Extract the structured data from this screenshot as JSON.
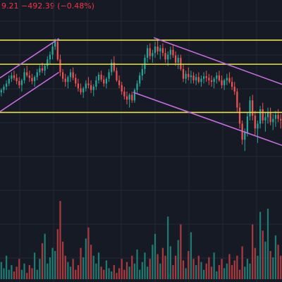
{
  "header": {
    "price_change": "9.21 −492.39 (−0.48%)"
  },
  "colors": {
    "background": "#161a25",
    "grid": "#232836",
    "up": "#26a69a",
    "down": "#ef5350",
    "volume_up": "#1f7a72",
    "volume_down": "#a8393c",
    "horizontal_level": "#e8e34a",
    "channel": "#c76be0",
    "header_text": "#f23645"
  },
  "chart_data": {
    "type": "candlestick",
    "x_count": 110,
    "y_range": [
      70,
      300
    ],
    "horizontal_levels": [
      160,
      220,
      250
    ],
    "channels": [
      {
        "name": "",
        "from": [
          0,
          203
        ],
        "to": [
          23,
          252
        ]
      },
      {
        "name": "",
        "from": [
          0,
          161
        ],
        "to": [
          23,
          210
        ]
      },
      {
        "name": "",
        "from": [
          60,
          253
        ],
        "to": [
          110,
          195
        ]
      },
      {
        "name": "",
        "from": [
          52,
          185
        ],
        "to": [
          110,
          119
        ]
      }
    ],
    "candles": [
      [
        185,
        190,
        180,
        188
      ],
      [
        188,
        195,
        184,
        192
      ],
      [
        192,
        200,
        188,
        196
      ],
      [
        196,
        206,
        193,
        202
      ],
      [
        202,
        210,
        198,
        206
      ],
      [
        206,
        212,
        200,
        203
      ],
      [
        203,
        208,
        195,
        199
      ],
      [
        199,
        204,
        190,
        194
      ],
      [
        194,
        202,
        186,
        200
      ],
      [
        200,
        215,
        196,
        210
      ],
      [
        210,
        218,
        204,
        206
      ],
      [
        206,
        212,
        198,
        203
      ],
      [
        203,
        208,
        195,
        199
      ],
      [
        199,
        206,
        192,
        204
      ],
      [
        204,
        214,
        200,
        210
      ],
      [
        210,
        219,
        206,
        215
      ],
      [
        215,
        222,
        209,
        212
      ],
      [
        212,
        220,
        206,
        218
      ],
      [
        218,
        230,
        214,
        226
      ],
      [
        226,
        236,
        220,
        232
      ],
      [
        232,
        246,
        226,
        242
      ],
      [
        242,
        252,
        238,
        248
      ],
      [
        248,
        250,
        224,
        226
      ],
      [
        226,
        232,
        205,
        210
      ],
      [
        210,
        214,
        198,
        202
      ],
      [
        202,
        208,
        192,
        198
      ],
      [
        198,
        206,
        190,
        204
      ],
      [
        204,
        214,
        198,
        210
      ],
      [
        210,
        216,
        200,
        203
      ],
      [
        203,
        208,
        192,
        196
      ],
      [
        196,
        202,
        186,
        190
      ],
      [
        190,
        196,
        182,
        185
      ],
      [
        185,
        192,
        178,
        190
      ],
      [
        190,
        200,
        186,
        196
      ],
      [
        196,
        204,
        190,
        194
      ],
      [
        194,
        200,
        184,
        188
      ],
      [
        188,
        195,
        180,
        192
      ],
      [
        192,
        205,
        188,
        200
      ],
      [
        200,
        210,
        196,
        207
      ],
      [
        207,
        212,
        198,
        201
      ],
      [
        201,
        206,
        192,
        196
      ],
      [
        196,
        204,
        190,
        202
      ],
      [
        202,
        214,
        198,
        210
      ],
      [
        210,
        226,
        206,
        222
      ],
      [
        222,
        230,
        210,
        212
      ],
      [
        212,
        216,
        198,
        200
      ],
      [
        200,
        206,
        190,
        194
      ],
      [
        194,
        198,
        182,
        186
      ],
      [
        186,
        192,
        176,
        180
      ],
      [
        180,
        186,
        170,
        176
      ],
      [
        176,
        184,
        166,
        182
      ],
      [
        182,
        186,
        172,
        175
      ],
      [
        175,
        190,
        172,
        188
      ],
      [
        188,
        200,
        184,
        196
      ],
      [
        196,
        210,
        192,
        206
      ],
      [
        206,
        220,
        200,
        214
      ],
      [
        214,
        232,
        208,
        228
      ],
      [
        228,
        244,
        222,
        240
      ],
      [
        240,
        246,
        226,
        230
      ],
      [
        230,
        238,
        222,
        234
      ],
      [
        234,
        248,
        228,
        242
      ],
      [
        242,
        250,
        232,
        236
      ],
      [
        236,
        244,
        226,
        240
      ],
      [
        240,
        246,
        230,
        234
      ],
      [
        234,
        240,
        222,
        226
      ],
      [
        226,
        236,
        218,
        232
      ],
      [
        232,
        242,
        226,
        238
      ],
      [
        238,
        244,
        228,
        231
      ],
      [
        231,
        236,
        218,
        222
      ],
      [
        222,
        232,
        214,
        228
      ],
      [
        228,
        232,
        212,
        214
      ],
      [
        214,
        220,
        198,
        202
      ],
      [
        202,
        212,
        196,
        208
      ],
      [
        208,
        216,
        200,
        204
      ],
      [
        204,
        212,
        196,
        206
      ],
      [
        206,
        210,
        196,
        200
      ],
      [
        200,
        208,
        194,
        204
      ],
      [
        204,
        210,
        196,
        198
      ],
      [
        198,
        206,
        192,
        202
      ],
      [
        202,
        210,
        196,
        205
      ],
      [
        205,
        212,
        198,
        203
      ],
      [
        203,
        208,
        194,
        200
      ],
      [
        200,
        206,
        192,
        198
      ],
      [
        198,
        204,
        190,
        202
      ],
      [
        202,
        210,
        196,
        206
      ],
      [
        206,
        212,
        198,
        200
      ],
      [
        200,
        206,
        190,
        194
      ],
      [
        194,
        202,
        188,
        200
      ],
      [
        200,
        208,
        194,
        203
      ],
      [
        203,
        210,
        196,
        198
      ],
      [
        198,
        204,
        188,
        192
      ],
      [
        192,
        198,
        182,
        186
      ],
      [
        186,
        190,
        160,
        166
      ],
      [
        166,
        172,
        140,
        146
      ],
      [
        146,
        150,
        120,
        126
      ],
      [
        126,
        140,
        112,
        135
      ],
      [
        135,
        160,
        130,
        155
      ],
      [
        155,
        180,
        150,
        175
      ],
      [
        175,
        182,
        150,
        156
      ],
      [
        156,
        162,
        132,
        140
      ],
      [
        140,
        150,
        122,
        146
      ],
      [
        146,
        168,
        140,
        164
      ],
      [
        164,
        172,
        146,
        150
      ],
      [
        150,
        160,
        136,
        154
      ],
      [
        154,
        166,
        146,
        160
      ],
      [
        160,
        166,
        144,
        148
      ],
      [
        148,
        158,
        138,
        152
      ],
      [
        152,
        162,
        142,
        157
      ],
      [
        157,
        164,
        148,
        152
      ],
      [
        152,
        158,
        140,
        150
      ]
    ],
    "volume_range": [
      0,
      100
    ],
    "volumes": [
      22,
      14,
      30,
      12,
      18,
      10,
      16,
      26,
      12,
      20,
      8,
      18,
      14,
      34,
      12,
      26,
      46,
      58,
      20,
      28,
      40,
      36,
      64,
      100,
      48,
      30,
      22,
      16,
      26,
      12,
      18,
      40,
      28,
      52,
      66,
      44,
      30,
      20,
      34,
      16,
      12,
      24,
      14,
      10,
      18,
      8,
      14,
      26,
      12,
      22,
      16,
      30,
      20,
      38,
      12,
      22,
      34,
      16,
      26,
      44,
      58,
      32,
      20,
      40,
      30,
      80,
      42,
      18,
      30,
      50,
      70,
      24,
      14,
      36,
      60,
      26,
      18,
      30,
      22,
      12,
      20,
      28,
      16,
      34,
      10,
      18,
      26,
      14,
      20,
      32,
      18,
      24,
      30,
      12,
      42,
      16,
      26,
      20,
      70,
      40,
      30,
      86,
      62,
      48,
      90,
      36,
      28,
      56,
      44,
      30
    ]
  }
}
